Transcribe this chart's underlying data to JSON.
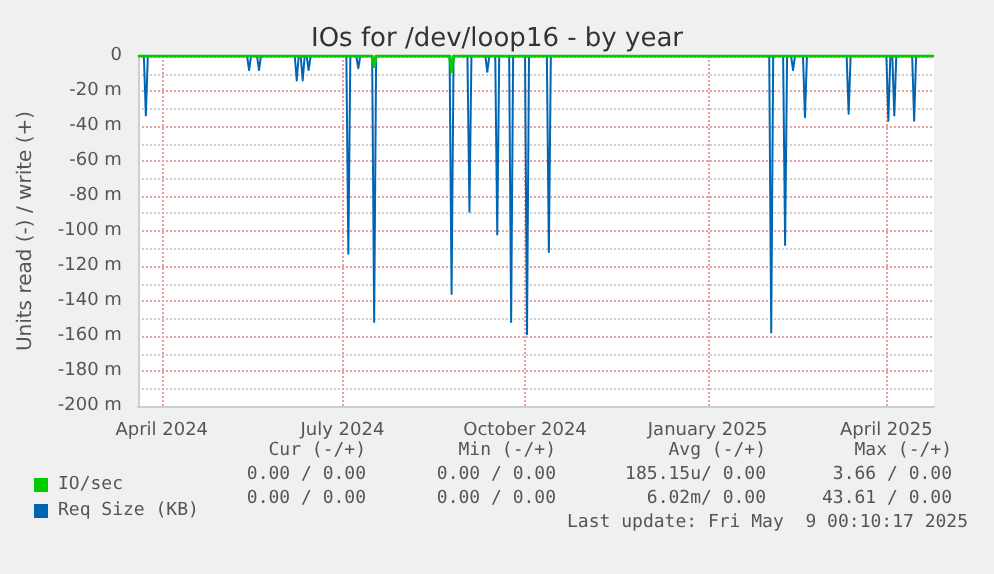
{
  "chart_data": {
    "type": "line",
    "title": "IOs for /dev/loop16 - by year",
    "ylabel": "Units read (-) / write (+)",
    "xlim": [
      "2024-03-20",
      "2025-04-25"
    ],
    "xticks": [
      {
        "value": "2024-04-01",
        "label": "April 2024"
      },
      {
        "value": "2024-07-01",
        "label": "July 2024"
      },
      {
        "value": "2024-10-01",
        "label": "October 2024"
      },
      {
        "value": "2025-01-01",
        "label": "January 2025"
      },
      {
        "value": "2025-04-01",
        "label": "April 2025"
      }
    ],
    "ylim": [
      -200,
      0
    ],
    "yticks": [
      {
        "value": -200,
        "label": "-200 m"
      },
      {
        "value": -180,
        "label": "-180 m"
      },
      {
        "value": -160,
        "label": "-160 m"
      },
      {
        "value": -140,
        "label": "-140 m"
      },
      {
        "value": -120,
        "label": "-120 m"
      },
      {
        "value": -100,
        "label": "-100 m"
      },
      {
        "value": -80,
        "label": "-80 m"
      },
      {
        "value": -60,
        "label": "-60 m"
      },
      {
        "value": -40,
        "label": "-40 m"
      },
      {
        "value": -20,
        "label": "-20 m"
      },
      0
    ],
    "grid": true,
    "legend": "bottom left",
    "marker": "none",
    "series": [
      {
        "name": "IO/sec",
        "color": "#00cc00",
        "x": [
          "2024-03-20",
          "2024-07-16",
          "2024-07-17",
          "2024-07-18",
          "2024-08-24",
          "2024-08-25",
          "2024-08-26",
          "2025-04-25"
        ],
        "values": [
          0,
          0,
          -6,
          0,
          0,
          -9,
          0,
          0
        ]
      },
      {
        "name": "Req Size (KB)",
        "color": "#0066b3",
        "x": [
          "2024-03-20",
          "2024-03-23",
          "2024-03-24",
          "2024-03-25",
          "2024-05-14",
          "2024-05-15",
          "2024-05-16",
          "2024-05-19",
          "2024-05-20",
          "2024-05-21",
          "2024-06-07",
          "2024-06-08",
          "2024-06-09",
          "2024-06-10",
          "2024-06-11",
          "2024-06-12",
          "2024-06-13",
          "2024-06-14",
          "2024-06-15",
          "2024-07-03",
          "2024-07-04",
          "2024-07-05",
          "2024-07-08",
          "2024-07-09",
          "2024-07-10",
          "2024-07-16",
          "2024-07-17",
          "2024-07-18",
          "2024-08-24",
          "2024-08-25",
          "2024-08-26",
          "2024-09-02",
          "2024-09-03",
          "2024-09-04",
          "2024-09-11",
          "2024-09-12",
          "2024-09-13",
          "2024-09-16",
          "2024-09-17",
          "2024-09-18",
          "2024-09-23",
          "2024-09-24",
          "2024-09-25",
          "2024-10-01",
          "2024-10-02",
          "2024-10-03",
          "2024-10-12",
          "2024-10-13",
          "2024-10-14",
          "2025-02-01",
          "2025-02-02",
          "2025-02-03",
          "2025-02-08",
          "2025-02-09",
          "2025-02-10",
          "2025-02-12",
          "2025-02-13",
          "2025-02-14",
          "2025-02-18",
          "2025-02-19",
          "2025-02-20",
          "2025-03-12",
          "2025-03-13",
          "2025-03-14",
          "2025-04-01",
          "2025-04-02",
          "2025-04-03",
          "2025-04-04",
          "2025-04-05",
          "2025-04-06",
          "2025-04-14",
          "2025-04-15",
          "2025-04-16",
          "2025-04-25"
        ],
        "values": [
          0,
          0,
          -34,
          0,
          0,
          -8,
          0,
          0,
          -8,
          0,
          0,
          -14,
          0,
          0,
          -14,
          0,
          0,
          -8,
          0,
          0,
          -113,
          0,
          0,
          -7,
          0,
          0,
          -152,
          0,
          0,
          -136,
          0,
          0,
          -89,
          0,
          0,
          -9,
          0,
          0,
          -102,
          0,
          0,
          -152,
          0,
          0,
          -159,
          0,
          0,
          -112,
          0,
          0,
          -158,
          0,
          0,
          -108,
          0,
          0,
          -8,
          0,
          0,
          -35,
          0,
          0,
          -33,
          0,
          0,
          -37,
          0,
          0,
          -34,
          0,
          0,
          -37,
          0,
          0
        ]
      }
    ],
    "annotations": [
      "Cur (-/+)",
      "Min (-/+)",
      "Avg (-/+)",
      "Max (-/+)",
      "0.00 / 0.00",
      "0.00 / 0.00",
      "185.15u/ 0.00",
      "3.66 / 0.00",
      "0.00 / 0.00",
      "0.00 / 0.00",
      "6.02m/ 0.00",
      "43.61 / 0.00",
      "Last update: Fri May  9 00:10:17 2025"
    ]
  }
}
